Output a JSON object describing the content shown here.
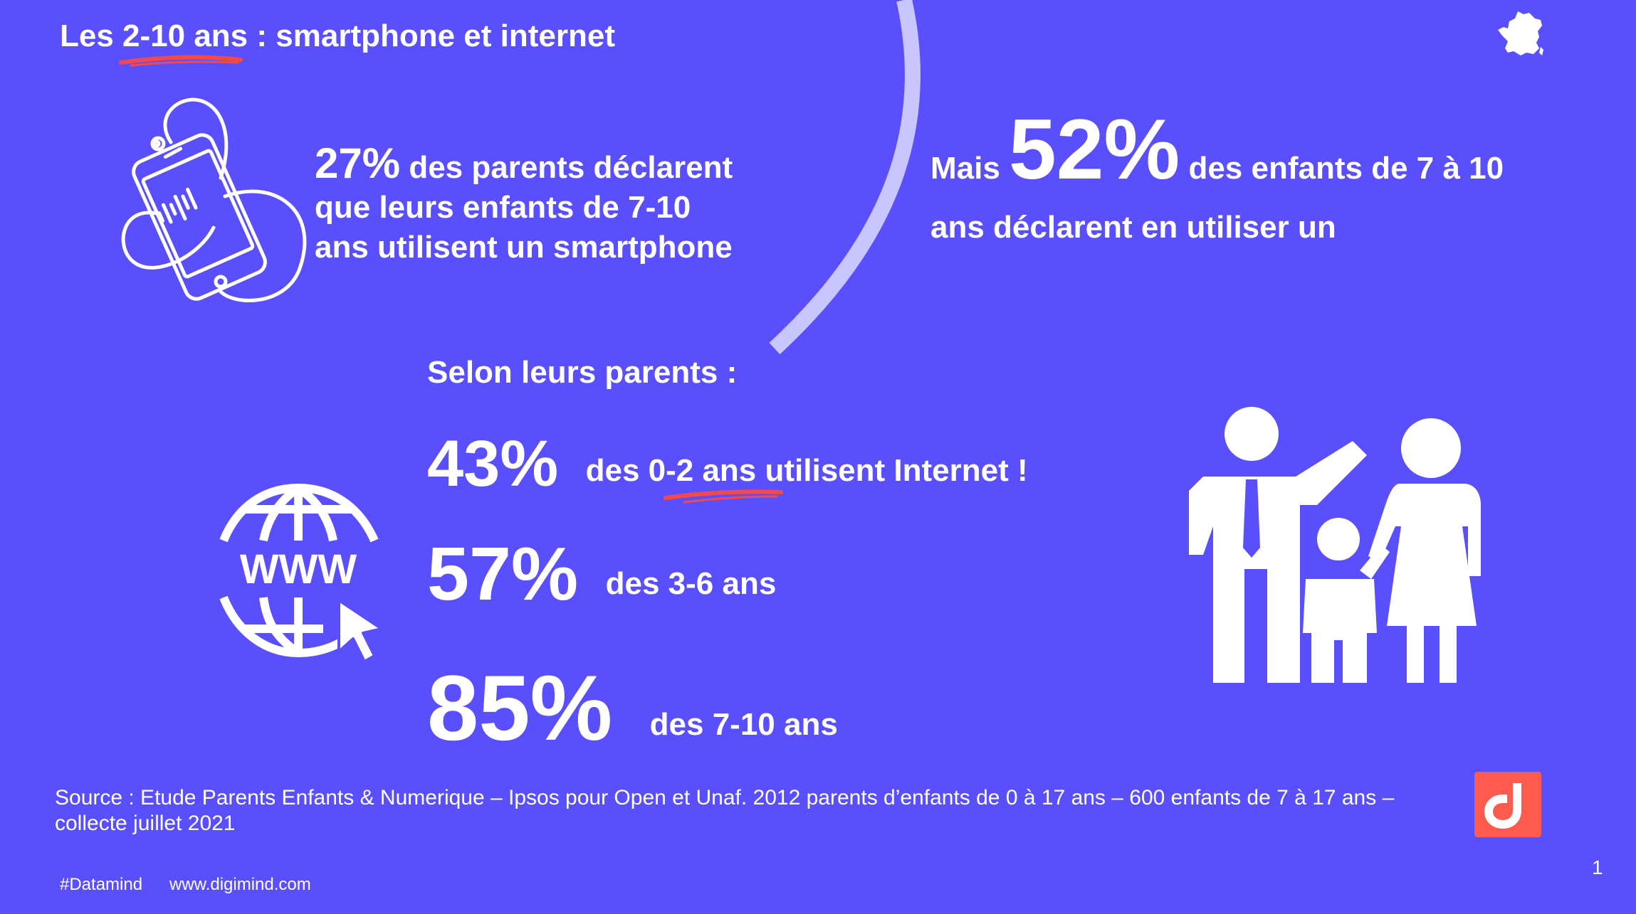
{
  "title": {
    "prefix": "Les ",
    "highlight": "2-10 ans",
    "suffix": " : smartphone et internet"
  },
  "smartphone_stat": {
    "value": "27%",
    "line1": " des parents déclarent",
    "line2": "que leurs enfants de 7-10",
    "line3": "ans utilisent un smartphone"
  },
  "children_stat": {
    "prefix": "Mais ",
    "value": "52%",
    "line1": " des enfants de 7 à 10",
    "line2": "ans déclarent en utiliser un"
  },
  "internet": {
    "heading": "Selon leurs parents :",
    "rows": [
      {
        "value": "43%",
        "text_prefix": "des ",
        "text_highlight": "0-2 ans",
        "text_suffix": " utilisent Internet !"
      },
      {
        "value": "57%",
        "text": "des 3-6 ans"
      },
      {
        "value": "85%",
        "text": "des 7-10 ans"
      }
    ],
    "globe_label": "WWW"
  },
  "source": "Source : Etude Parents Enfants & Numerique – Ipsos pour Open et Unaf. 2012 parents d’enfants de 0 à 17 ans – 600 enfants de 7 à 17 ans – collecte juillet 2021",
  "footer": {
    "hashtag": "#Datamind",
    "website": "www.digimind.com"
  },
  "page_number": "1",
  "colors": {
    "background": "#5a4ffd",
    "accent_underline": "#f4494a",
    "logo": "#fd5b4e",
    "arc": "#c9c6ff"
  },
  "icons": [
    "smartphone-icon",
    "www-globe-icon",
    "cursor-icon",
    "family-icon",
    "france-map-icon",
    "digimind-logo-icon"
  ]
}
